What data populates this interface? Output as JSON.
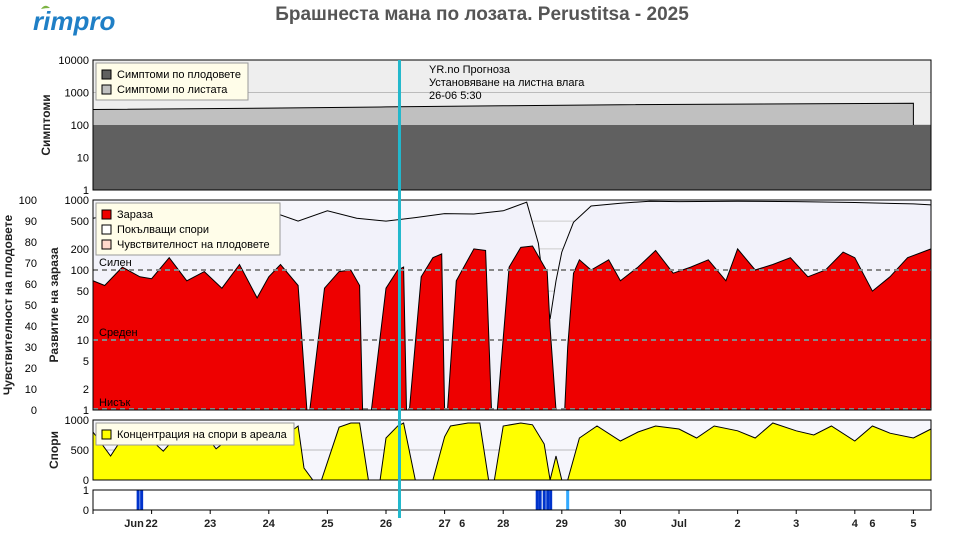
{
  "brand": "rimpro",
  "title": "Брашнеста мана по лозата.  Perustitsa - 2025",
  "colors": {
    "fruit": "#606060",
    "leaf": "#c0c0c0",
    "infection": "#ee0000",
    "spores": "#ffff00",
    "now": "#22b8cc",
    "bars": "#0033cc",
    "panel_bg": "#eeeeee"
  },
  "now_annotation": {
    "line1": "YR.no Прогноза",
    "line2": "Установяване на листна влага",
    "line3": "26-06 5:30"
  },
  "x_axis": {
    "month_labels": [
      "Jun",
      "Jul"
    ],
    "day_labels": [
      "22",
      "23",
      "24",
      "25",
      "26",
      "27",
      "28",
      "29",
      "30",
      "2",
      "3",
      "4",
      "5"
    ],
    "extra_labels": [
      "6",
      "6"
    ]
  },
  "chart_data": [
    {
      "type": "area",
      "panel": "symptoms",
      "ylabel": "Симптоми",
      "y_scale": "log",
      "ylim": [
        1,
        10000
      ],
      "y_ticks": [
        "10000",
        "1000",
        "100",
        "10",
        "1"
      ],
      "legend": [
        "Симптоми по плодовете",
        "Симптоми по листата"
      ],
      "series": [
        {
          "name": "Симптоми по плодовете",
          "x": [
            21.0,
            30.0
          ],
          "values": [
            100,
            100
          ]
        },
        {
          "name": "Симптоми по листата",
          "x": [
            21.0,
            24.0,
            26.0,
            28.0,
            30.0,
            35.0
          ],
          "values": [
            300,
            330,
            360,
            390,
            420,
            470
          ]
        }
      ],
      "annotations": [
        "YR.no Прогноза",
        "Установяване на листна влага",
        "26-06 5:30"
      ]
    },
    {
      "type": "area",
      "panel": "infection",
      "ylabel": "Развитие на зараза",
      "ylabel2": "Чувствителност на плодовете",
      "y_scale": "log",
      "ylim": [
        1,
        1000
      ],
      "y_ticks": [
        "1000",
        "500",
        "200",
        "100",
        "50",
        "20",
        "10",
        "5",
        "2",
        "1"
      ],
      "y2_ticks": [
        "100",
        "90",
        "80",
        "70",
        "60",
        "50",
        "40",
        "30",
        "20",
        "10",
        "0"
      ],
      "legend": [
        "Зараза",
        "Покълващи спори",
        "Чувствителност на плодовете"
      ],
      "levels": [
        "Силен",
        "Среден",
        "Нисък"
      ],
      "series": [
        {
          "name": "Зараза",
          "x": [
            21.0,
            21.2,
            21.5,
            21.8,
            22.0,
            22.3,
            22.6,
            22.9,
            23.2,
            23.5,
            23.8,
            24.0,
            24.2,
            24.5,
            24.65,
            24.7,
            24.95,
            25.2,
            25.4,
            25.55,
            25.6,
            25.75,
            26.0,
            26.2,
            26.3,
            26.35,
            26.4,
            26.6,
            26.8,
            26.95,
            27.0,
            27.05,
            27.2,
            27.5,
            27.7,
            27.8,
            27.85,
            27.9,
            28.1,
            28.3,
            28.5,
            28.75,
            28.8,
            28.9,
            29.0,
            29.05,
            29.1,
            29.2,
            29.3,
            29.5,
            29.8,
            30.0,
            30.3,
            30.6,
            30.9,
            31.2,
            31.5,
            31.8,
            32.0,
            32.3,
            32.6,
            32.9,
            33.2,
            33.5,
            33.8,
            34.0,
            34.3,
            34.6,
            34.9,
            35.3
          ],
          "values": [
            70,
            60,
            110,
            80,
            75,
            150,
            70,
            95,
            55,
            120,
            40,
            80,
            120,
            60,
            1,
            1,
            55,
            95,
            100,
            60,
            1,
            1,
            55,
            100,
            110,
            1,
            1,
            80,
            150,
            170,
            1,
            1,
            70,
            200,
            190,
            1,
            1,
            1,
            110,
            210,
            220,
            95,
            15,
            1,
            1,
            1,
            8,
            90,
            140,
            100,
            140,
            70,
            110,
            190,
            90,
            110,
            140,
            70,
            200,
            100,
            120,
            150,
            80,
            100,
            180,
            150,
            50,
            80,
            150,
            200
          ]
        },
        {
          "name": "Покълващи спори",
          "x": [
            21.0,
            21.5,
            22.0,
            22.5,
            23.0,
            23.5,
            24.0,
            24.5,
            25.0,
            25.5,
            26.0,
            26.5,
            27.0,
            27.5,
            28.0,
            28.4,
            28.6,
            28.7,
            28.8,
            28.9,
            29.0,
            29.2,
            29.5,
            30.0,
            30.5,
            31.0,
            32.0,
            33.0,
            34.0,
            35.0,
            35.3
          ],
          "values": [
            550,
            650,
            700,
            600,
            650,
            550,
            700,
            500,
            700,
            550,
            500,
            560,
            640,
            630,
            700,
            930,
            240,
            50,
            20,
            70,
            180,
            480,
            820,
            900,
            960,
            950,
            960,
            950,
            920,
            880,
            850
          ]
        },
        {
          "name": "Чувствителност на плодовете",
          "x": [
            21.0,
            35.3
          ],
          "values": [
            0,
            0
          ]
        }
      ]
    },
    {
      "type": "area",
      "panel": "spores",
      "ylabel": "Спори",
      "ylim": [
        0,
        1000
      ],
      "y_ticks": [
        "1000",
        "500",
        "0"
      ],
      "legend": [
        "Концентрация на спори в ареала"
      ],
      "series": [
        {
          "name": "Концентрация на спори в ареала",
          "x": [
            21.0,
            21.3,
            21.6,
            21.9,
            22.2,
            22.5,
            22.8,
            23.1,
            23.4,
            23.7,
            24.0,
            24.3,
            24.5,
            24.6,
            24.75,
            24.9,
            25.2,
            25.4,
            25.55,
            25.7,
            25.9,
            26.0,
            26.2,
            26.3,
            26.5,
            26.8,
            27.0,
            27.1,
            27.4,
            27.6,
            27.75,
            27.85,
            28.0,
            28.3,
            28.5,
            28.7,
            28.8,
            28.9,
            29.0,
            29.1,
            29.3,
            29.6,
            30.0,
            30.3,
            30.6,
            31.0,
            31.3,
            31.6,
            32.0,
            32.3,
            32.6,
            33.0,
            33.3,
            33.6,
            34.0,
            34.3,
            34.6,
            35.0,
            35.3
          ],
          "values": [
            800,
            400,
            850,
            750,
            480,
            820,
            900,
            520,
            750,
            850,
            830,
            750,
            900,
            200,
            0,
            0,
            880,
            950,
            950,
            0,
            0,
            700,
            900,
            950,
            0,
            0,
            720,
            900,
            950,
            950,
            0,
            0,
            900,
            950,
            920,
            600,
            0,
            400,
            0,
            0,
            700,
            900,
            650,
            800,
            900,
            850,
            700,
            900,
            820,
            700,
            950,
            820,
            750,
            900,
            650,
            900,
            780,
            700,
            850
          ]
        }
      ]
    },
    {
      "type": "bar",
      "panel": "events",
      "ylim": [
        0,
        1
      ],
      "y_ticks": [
        "1",
        "0"
      ],
      "x": [
        21.77,
        21.83,
        28.58,
        28.63,
        28.7,
        28.76,
        28.81,
        29.1
      ],
      "values": [
        1,
        1,
        1,
        1,
        1,
        1,
        1,
        1
      ]
    }
  ]
}
